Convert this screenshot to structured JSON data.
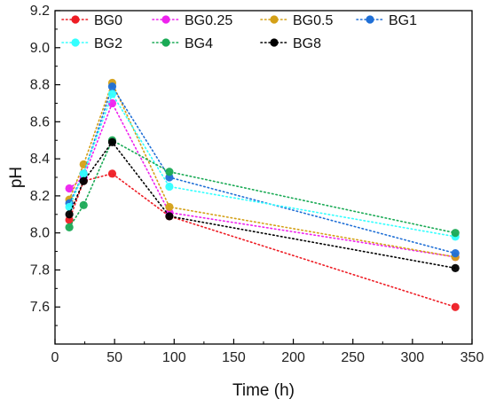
{
  "chart_data": {
    "type": "line",
    "title": "",
    "xlabel": "Time (h)",
    "ylabel": "pH",
    "xlim": [
      0,
      350
    ],
    "ylim": [
      7.4,
      9.2
    ],
    "xticks": [
      0,
      50,
      100,
      150,
      200,
      250,
      300,
      350
    ],
    "yticks": [
      7.6,
      7.8,
      8.0,
      8.2,
      8.4,
      8.6,
      8.8,
      9.0,
      9.2
    ],
    "xtick_labels": [
      "0",
      "50",
      "100",
      "150",
      "200",
      "250",
      "300",
      "350"
    ],
    "ytick_labels": [
      "7.6",
      "7.8",
      "8.0",
      "8.2",
      "8.4",
      "8.6",
      "8.8",
      "9.0",
      "9.2"
    ],
    "grid": false,
    "line_style": "dotted",
    "legend_position": "top-left",
    "x": [
      12,
      24,
      48,
      96,
      336
    ],
    "series": [
      {
        "name": "BG0",
        "color": "#ee1c24",
        "values": [
          8.07,
          8.28,
          8.32,
          8.09,
          7.6
        ]
      },
      {
        "name": "BG0.25",
        "color": "#ee22ee",
        "values": [
          8.24,
          8.3,
          8.7,
          8.11,
          7.87
        ]
      },
      {
        "name": "BG0.5",
        "color": "#d4a017",
        "values": [
          8.18,
          8.37,
          8.81,
          8.14,
          7.87
        ]
      },
      {
        "name": "BG1",
        "color": "#1f6fd6",
        "values": [
          8.16,
          8.32,
          8.79,
          8.3,
          7.89
        ]
      },
      {
        "name": "BG2",
        "color": "#33ffff",
        "values": [
          8.14,
          8.32,
          8.75,
          8.25,
          7.98
        ]
      },
      {
        "name": "BG4",
        "color": "#1aaa55",
        "values": [
          8.03,
          8.15,
          8.5,
          8.33,
          8.0
        ]
      },
      {
        "name": "BG8",
        "color": "#000000",
        "values": [
          8.1,
          8.28,
          8.49,
          8.09,
          7.81
        ]
      }
    ]
  }
}
